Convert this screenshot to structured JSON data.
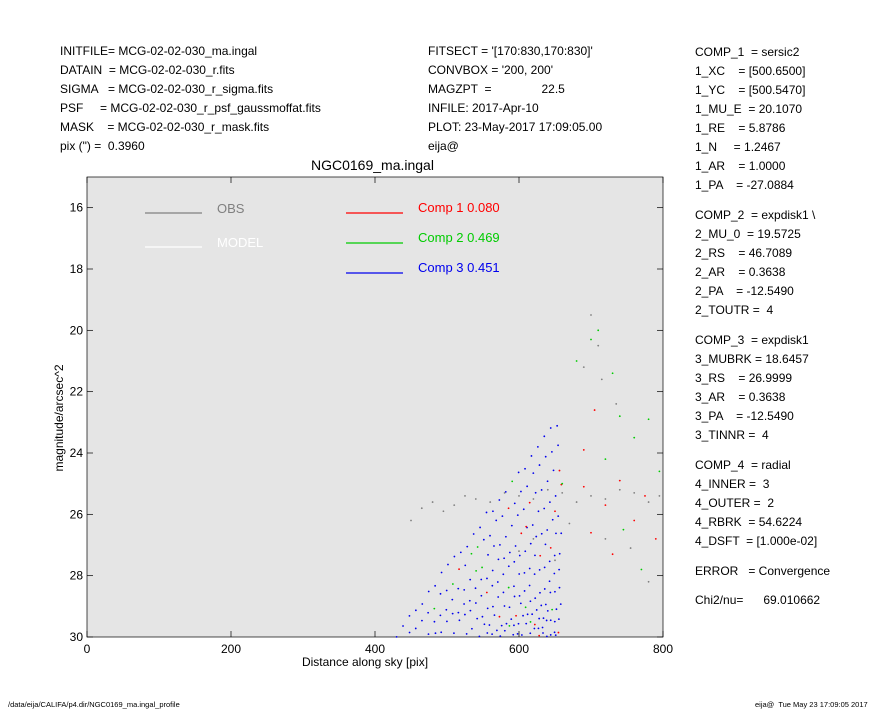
{
  "header_left": [
    "INITFILE= MCG-02-02-030_ma.ingal",
    "DATAIN  = MCG-02-02-030_r.fits",
    "SIGMA   = MCG-02-02-030_r_sigma.fits",
    "PSF     = MCG-02-02-030_r_psf_gaussmoffat.fits",
    "MASK    = MCG-02-02-030_r_mask.fits",
    "pix (\") =  0.3960"
  ],
  "header_mid": [
    "FITSECT = '[170:830,170:830]'",
    "CONVBOX = '200, 200'",
    "MAGZPT  =               22.5",
    "INFILE: 2017-Apr-10",
    "PLOT: 23-May-2017 17:09:05.00",
    "eija@"
  ],
  "components": [
    [
      "COMP_1  = sersic2",
      "1_XC    = [500.6500]",
      "1_YC    = [500.5470]",
      "1_MU_E  = 20.1070",
      "1_RE    = 5.8786",
      "1_N     = 1.2467",
      "1_AR    = 1.0000",
      "1_PA    = -27.0884"
    ],
    [
      "COMP_2  = expdisk1 \\",
      "2_MU_0  = 19.5725",
      "2_RS    = 46.7089",
      "2_AR    = 0.3638",
      "2_PA    = -12.5490",
      "2_TOUTR =  4"
    ],
    [
      "COMP_3  = expdisk1",
      "3_MUBRK = 18.6457",
      "3_RS    = 26.9999",
      "3_AR    = 0.3638",
      "3_PA    = -12.5490",
      "3_TINNR =  4"
    ],
    [
      "COMP_4  = radial",
      "4_INNER =  3",
      "4_OUTER =  2",
      "4_RBRK  = 54.6224",
      "4_DSFT  = [1.000e-02]"
    ]
  ],
  "error_line": "ERROR   = Convergence",
  "chi_line": "Chi2/nu=      69.010662",
  "footer_left": "/data/eija/CALIFA/p4.dir/NGC0169_ma.ingal_profile",
  "footer_right": "eija@  Tue May 23 17:09:05 2017",
  "chart_data": {
    "type": "scatter",
    "title": "NGC0169_ma.ingal",
    "xlabel": "Distance along sky [pix]",
    "ylabel": "magnitude/arcsec^2",
    "xlim": [
      0,
      800
    ],
    "ylim": [
      30,
      15
    ],
    "y_inverted": true,
    "grid": false,
    "background": "#e5e5e5",
    "x_ticks": [
      0,
      200,
      400,
      600,
      800
    ],
    "y_ticks": [
      16,
      18,
      20,
      22,
      24,
      26,
      28,
      30
    ],
    "legend": [
      {
        "label": "OBS",
        "color": "#808080"
      },
      {
        "label": "MODEL",
        "color": "#ffffff"
      }
    ],
    "components_legend": [
      {
        "label": "Comp 1",
        "fraction": "0.080",
        "color": "#ff0000"
      },
      {
        "label": "Comp 2",
        "fraction": "0.469",
        "color": "#00cc00"
      },
      {
        "label": "Comp 3",
        "fraction": "0.451",
        "color": "#0000ee"
      }
    ],
    "series": [
      {
        "color": "#808080",
        "points": [
          [
            450,
            26.2
          ],
          [
            465,
            25.8
          ],
          [
            480,
            25.6
          ],
          [
            495,
            25.9
          ],
          [
            510,
            25.7
          ],
          [
            525,
            25.4
          ],
          [
            540,
            25.5
          ],
          [
            560,
            25.6
          ],
          [
            580,
            25.3
          ],
          [
            600,
            25.4
          ],
          [
            620,
            25.5
          ],
          [
            640,
            25.2
          ],
          [
            660,
            25.3
          ],
          [
            680,
            25.6
          ],
          [
            700,
            25.4
          ],
          [
            720,
            25.5
          ],
          [
            740,
            25.2
          ],
          [
            760,
            25.3
          ],
          [
            780,
            25.6
          ],
          [
            795,
            25.4
          ],
          [
            700,
            19.5
          ],
          [
            710,
            20.5
          ],
          [
            690,
            21.2
          ],
          [
            715,
            21.6
          ],
          [
            735,
            22.4
          ],
          [
            600,
            27.2
          ],
          [
            620,
            26.8
          ],
          [
            650,
            27.5
          ],
          [
            670,
            26.3
          ],
          [
            720,
            26.8
          ],
          [
            755,
            27.1
          ],
          [
            780,
            28.2
          ]
        ]
      },
      {
        "color": "#ff0000",
        "points": [
          [
            610,
            26.4
          ],
          [
            650,
            25.9
          ],
          [
            690,
            25.1
          ],
          [
            700,
            26.6
          ],
          [
            720,
            25.7
          ],
          [
            740,
            24.9
          ],
          [
            760,
            26.2
          ],
          [
            775,
            25.4
          ],
          [
            790,
            26.8
          ],
          [
            705,
            22.6
          ],
          [
            690,
            23.9
          ],
          [
            730,
            27.3
          ]
        ]
      },
      {
        "color": "#00cc00",
        "points": [
          [
            680,
            21.0
          ],
          [
            700,
            20.3
          ],
          [
            710,
            20.0
          ],
          [
            730,
            21.4
          ],
          [
            740,
            22.8
          ],
          [
            760,
            23.5
          ],
          [
            780,
            22.9
          ],
          [
            795,
            24.6
          ],
          [
            720,
            24.2
          ],
          [
            745,
            26.5
          ],
          [
            770,
            27.8
          ],
          [
            660,
            25.0
          ]
        ]
      }
    ]
  }
}
